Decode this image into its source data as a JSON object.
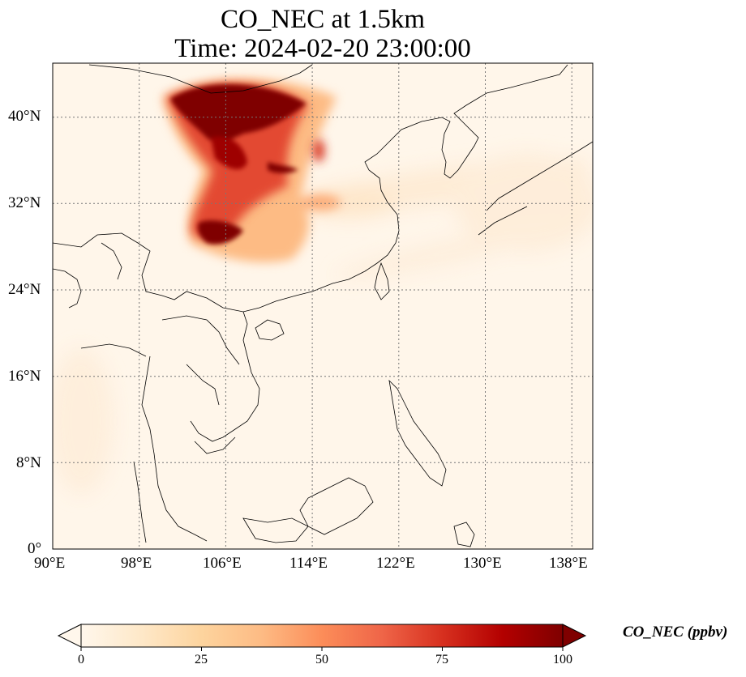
{
  "title": {
    "line1": "CO_NEC at 1.5km",
    "line2": "Time: 2024-02-20 23:00:00"
  },
  "map": {
    "lon_range": [
      90,
      139
    ],
    "lat_range": [
      0,
      45
    ],
    "lon_ticks": [
      "90°E",
      "98°E",
      "106°E",
      "114°E",
      "122°E",
      "130°E",
      "138°E"
    ],
    "lat_ticks": [
      "0°",
      "8°N",
      "16°N",
      "24°N",
      "32°N",
      "40°N"
    ],
    "gridlines": "dotted"
  },
  "colorbar": {
    "label": "CO_NEC (ppbv)",
    "ticks": [
      "0",
      "25",
      "50",
      "75",
      "100"
    ],
    "range": [
      0,
      100
    ],
    "colormap": "OrRd",
    "extend": "both",
    "colors": [
      "#fff7ec",
      "#fee8c8",
      "#fdd49e",
      "#fdbb84",
      "#fc8d59",
      "#ef6548",
      "#d7301f",
      "#b30000",
      "#7f0000"
    ]
  }
}
